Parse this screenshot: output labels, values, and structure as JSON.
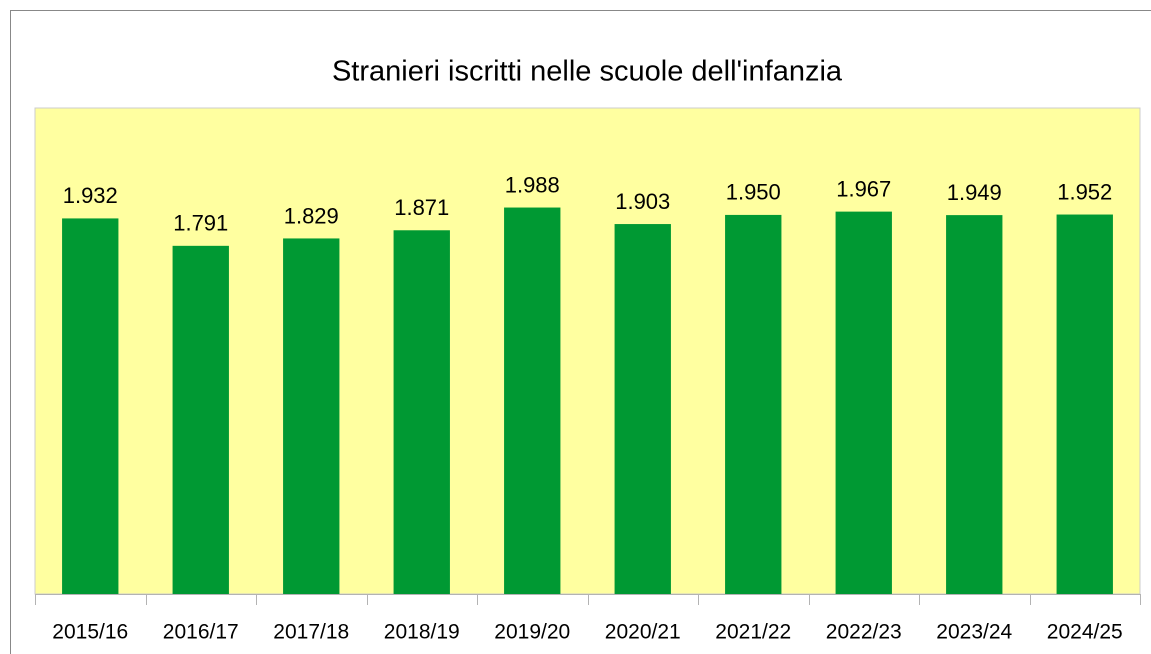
{
  "chart_data": {
    "type": "bar",
    "title": "Stranieri iscritti nelle scuole dell'infanzia",
    "categories": [
      "2015/16",
      "2016/17",
      "2017/18",
      "2018/19",
      "2019/20",
      "2020/21",
      "2021/22",
      "2022/23",
      "2023/24",
      "2024/25"
    ],
    "values": [
      1932,
      1791,
      1829,
      1871,
      1988,
      1903,
      1950,
      1967,
      1949,
      1952
    ],
    "value_labels": [
      "1.932",
      "1.791",
      "1.829",
      "1.871",
      "1.988",
      "1.903",
      "1.950",
      "1.967",
      "1.949",
      "1.952"
    ],
    "color": "#009933",
    "plot_background": "#ffffa0",
    "ylim": [
      0,
      2500
    ]
  }
}
